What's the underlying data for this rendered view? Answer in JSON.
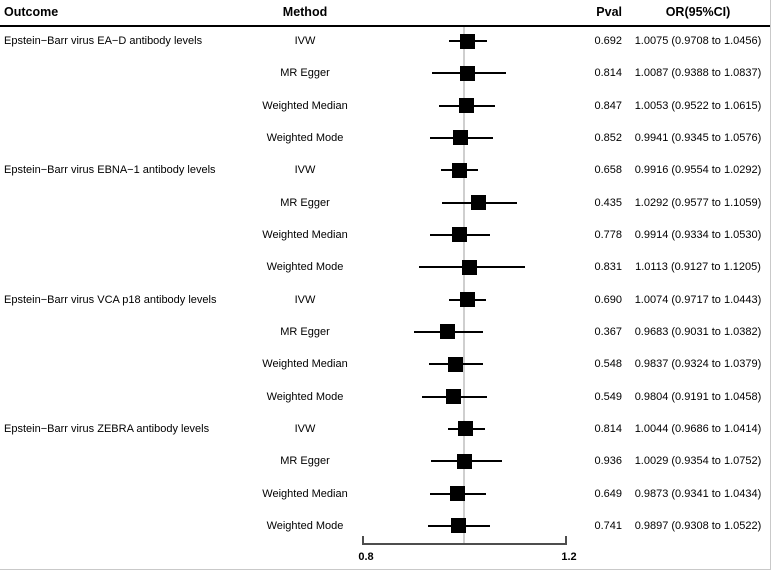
{
  "header": {
    "outcome": "Outcome",
    "method": "Method",
    "pval": "Pval",
    "or": "OR(95%CI)"
  },
  "colors": {
    "text": "#000000",
    "marker": "#000000",
    "ci_line": "#000000",
    "ref_line": "#cfcfcf",
    "axis": "#4d4d4d",
    "header_rule": "#000000"
  },
  "chart_data": {
    "type": "forest",
    "xlim": [
      0.8,
      1.2
    ],
    "x_ticks": [
      0.8,
      1.2
    ],
    "x_tick_labels": [
      "0.8",
      "1.2"
    ],
    "ref_line": 1.0,
    "legend_position": "none",
    "grid": false,
    "groups": [
      {
        "outcome": "Epstein−Barr virus EA−D antibody levels",
        "rows": [
          {
            "method": "IVW",
            "pval": "0.692",
            "or": 1.0075,
            "lo": 0.9708,
            "hi": 1.0456,
            "or_text": "1.0075 (0.9708 to 1.0456)"
          },
          {
            "method": "MR Egger",
            "pval": "0.814",
            "or": 1.0087,
            "lo": 0.9388,
            "hi": 1.0837,
            "or_text": "1.0087 (0.9388 to 1.0837)"
          },
          {
            "method": "Weighted Median",
            "pval": "0.847",
            "or": 1.0053,
            "lo": 0.9522,
            "hi": 1.0615,
            "or_text": "1.0053 (0.9522 to 1.0615)"
          },
          {
            "method": "Weighted Mode",
            "pval": "0.852",
            "or": 0.9941,
            "lo": 0.9345,
            "hi": 1.0576,
            "or_text": "0.9941 (0.9345 to 1.0576)"
          }
        ]
      },
      {
        "outcome": "Epstein−Barr virus EBNA−1 antibody levels",
        "rows": [
          {
            "method": "IVW",
            "pval": "0.658",
            "or": 0.9916,
            "lo": 0.9554,
            "hi": 1.0292,
            "or_text": "0.9916 (0.9554 to 1.0292)"
          },
          {
            "method": "MR Egger",
            "pval": "0.435",
            "or": 1.0292,
            "lo": 0.9577,
            "hi": 1.1059,
            "or_text": "1.0292 (0.9577 to 1.1059)"
          },
          {
            "method": "Weighted Median",
            "pval": "0.778",
            "or": 0.9914,
            "lo": 0.9334,
            "hi": 1.053,
            "or_text": "0.9914 (0.9334 to 1.0530)"
          },
          {
            "method": "Weighted Mode",
            "pval": "0.831",
            "or": 1.0113,
            "lo": 0.9127,
            "hi": 1.1205,
            "or_text": "1.0113 (0.9127 to 1.1205)"
          }
        ]
      },
      {
        "outcome": "Epstein−Barr virus VCA p18 antibody levels",
        "rows": [
          {
            "method": "IVW",
            "pval": "0.690",
            "or": 1.0074,
            "lo": 0.9717,
            "hi": 1.0443,
            "or_text": "1.0074 (0.9717 to 1.0443)"
          },
          {
            "method": "MR Egger",
            "pval": "0.367",
            "or": 0.9683,
            "lo": 0.9031,
            "hi": 1.0382,
            "or_text": "0.9683 (0.9031 to 1.0382)"
          },
          {
            "method": "Weighted Median",
            "pval": "0.548",
            "or": 0.9837,
            "lo": 0.9324,
            "hi": 1.0379,
            "or_text": "0.9837 (0.9324 to 1.0379)"
          },
          {
            "method": "Weighted Mode",
            "pval": "0.549",
            "or": 0.9804,
            "lo": 0.9191,
            "hi": 1.0458,
            "or_text": "0.9804 (0.9191 to 1.0458)"
          }
        ]
      },
      {
        "outcome": "Epstein−Barr virus ZEBRA antibody levels",
        "rows": [
          {
            "method": "IVW",
            "pval": "0.814",
            "or": 1.0044,
            "lo": 0.9686,
            "hi": 1.0414,
            "or_text": "1.0044 (0.9686 to 1.0414)"
          },
          {
            "method": "MR Egger",
            "pval": "0.936",
            "or": 1.0029,
            "lo": 0.9354,
            "hi": 1.0752,
            "or_text": "1.0029 (0.9354 to 1.0752)"
          },
          {
            "method": "Weighted Median",
            "pval": "0.649",
            "or": 0.9873,
            "lo": 0.9341,
            "hi": 1.0434,
            "or_text": "0.9873 (0.9341 to 1.0434)"
          },
          {
            "method": "Weighted Mode",
            "pval": "0.741",
            "or": 0.9897,
            "lo": 0.9308,
            "hi": 1.0522,
            "or_text": "0.9897 (0.9308 to 1.0522)"
          }
        ]
      }
    ]
  }
}
